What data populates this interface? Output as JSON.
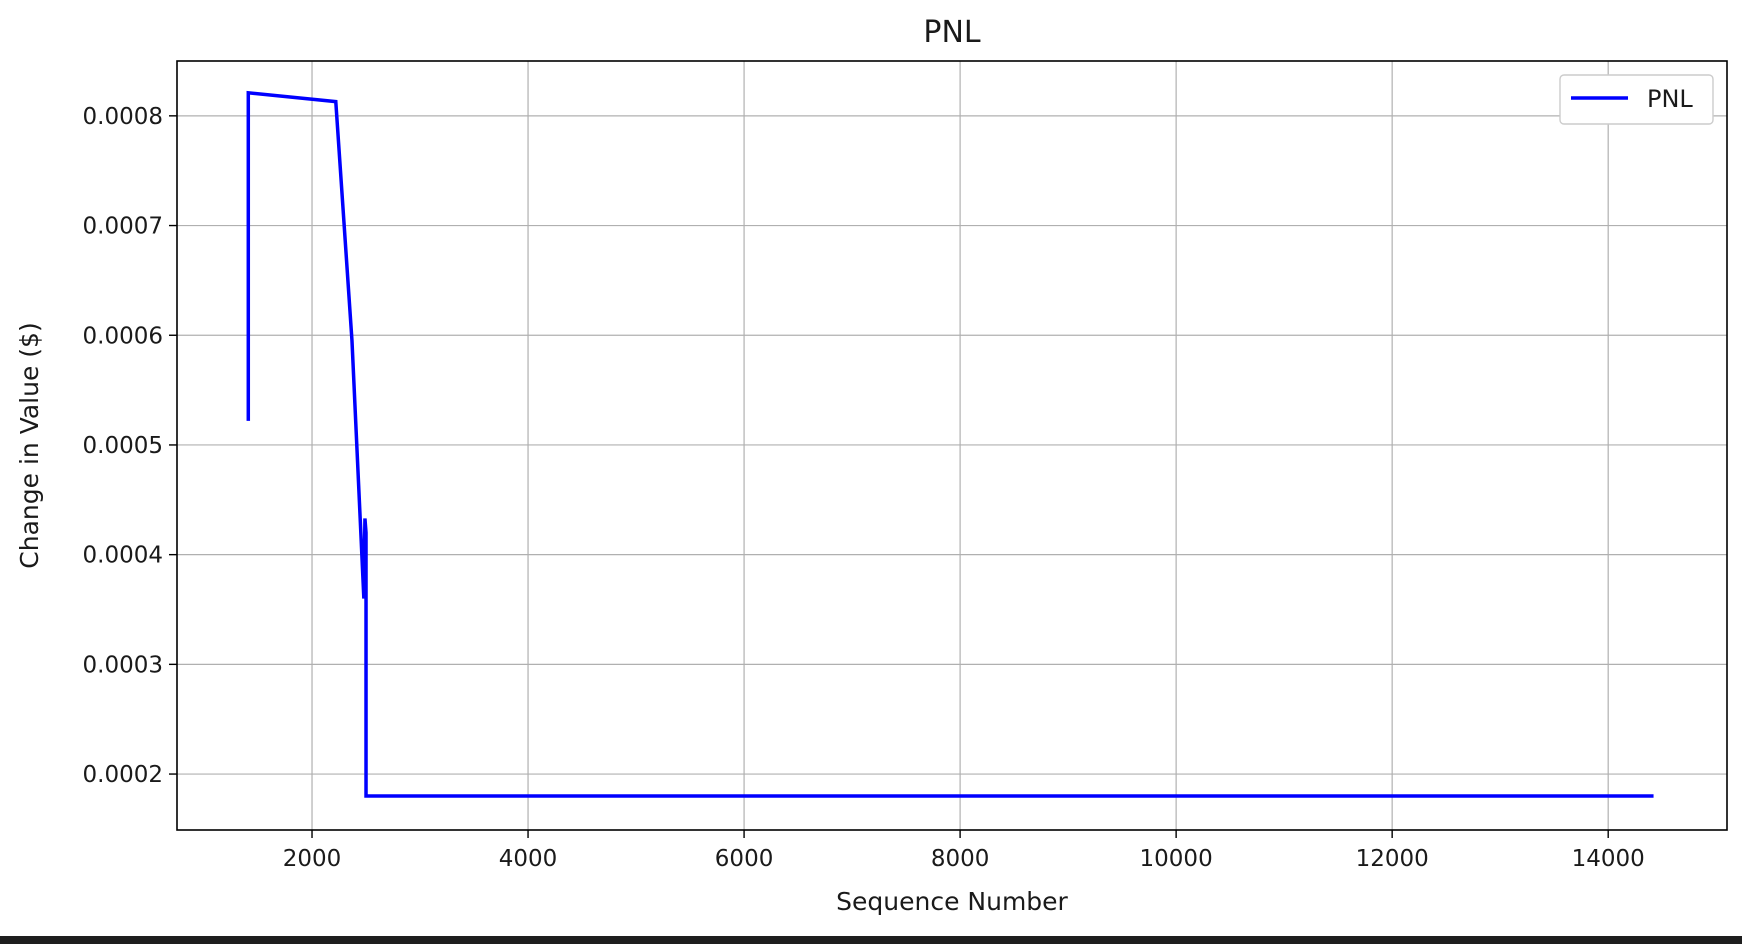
{
  "chart_data": {
    "type": "line",
    "title": "PNL",
    "xlabel": "Sequence Number",
    "ylabel": "Change in Value ($)",
    "xlim": [
      750,
      15100
    ],
    "ylim": [
      0.000149,
      0.00085
    ],
    "x_ticks": [
      2000,
      4000,
      6000,
      8000,
      10000,
      12000,
      14000
    ],
    "x_tick_labels": [
      "2000",
      "4000",
      "6000",
      "8000",
      "10000",
      "12000",
      "14000"
    ],
    "y_ticks": [
      0.0002,
      0.0003,
      0.0004,
      0.0005,
      0.0006,
      0.0007,
      0.0008
    ],
    "y_tick_labels": [
      "0.0002",
      "0.0003",
      "0.0004",
      "0.0005",
      "0.0006",
      "0.0007",
      "0.0008"
    ],
    "grid": true,
    "legend_position": "top-right",
    "series": [
      {
        "name": "PNL",
        "color": "#0000ff",
        "x": [
          1410,
          1410,
          2220,
          2370,
          2480,
          2490,
          2500,
          2500,
          2510,
          14420
        ],
        "y": [
          0.000522,
          0.000821,
          0.000813,
          0.000595,
          0.00036,
          0.000433,
          0.00042,
          0.00018,
          0.00018,
          0.00018
        ]
      }
    ]
  }
}
